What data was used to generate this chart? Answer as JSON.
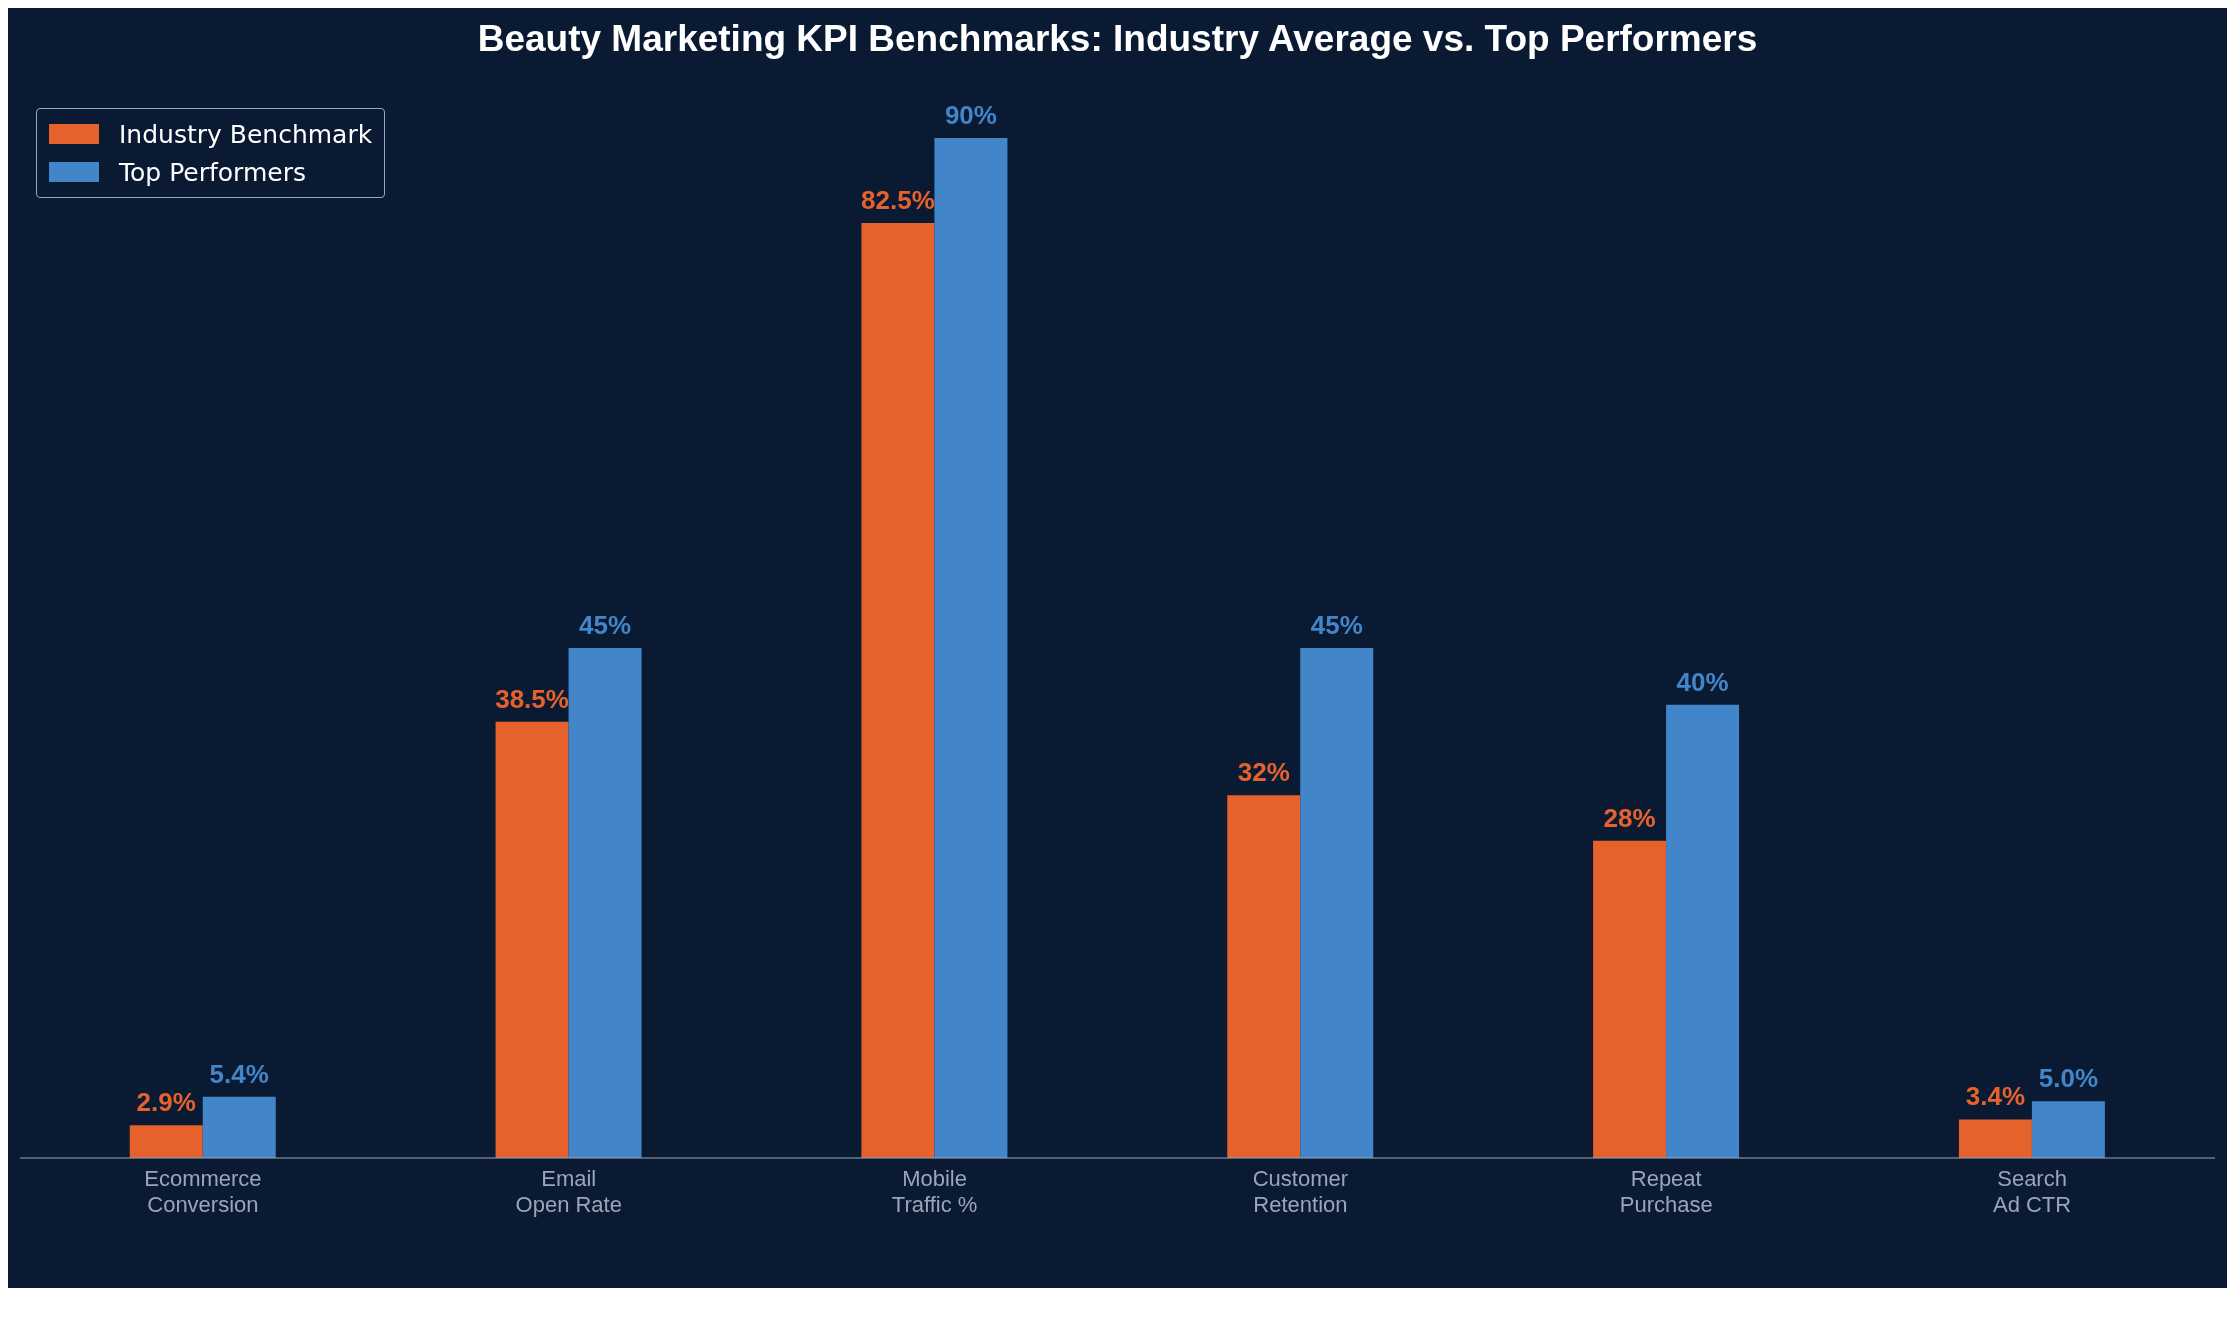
{
  "chart_data": {
    "type": "bar",
    "title": "Beauty Marketing KPI Benchmarks: Industry Average vs. Top Performers",
    "categories": [
      "Ecommerce\nConversion",
      "Email\nOpen Rate",
      "Mobile\nTraffic %",
      "Customer\nRetention",
      "Repeat\nPurchase",
      "Search\nAd CTR"
    ],
    "series": [
      {
        "name": "Industry Benchmark",
        "color": "#e5622d",
        "values": [
          2.9,
          38.5,
          82.5,
          32,
          28,
          3.4
        ],
        "value_labels": [
          "2.9%",
          "38.5%",
          "82.5%",
          "32%",
          "28%",
          "3.4%"
        ]
      },
      {
        "name": "Top Performers",
        "color": "#4285c8",
        "values": [
          5.4,
          45,
          90,
          45,
          40,
          5.0
        ],
        "value_labels": [
          "5.4%",
          "45%",
          "90%",
          "45%",
          "40%",
          "5.0%"
        ]
      }
    ],
    "legend": "top left",
    "grid": false
  }
}
